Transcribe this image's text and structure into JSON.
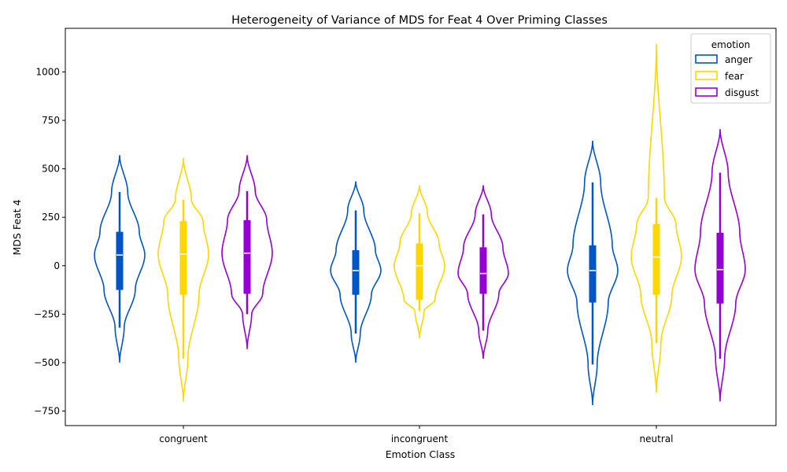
{
  "chart_data": {
    "type": "violin",
    "title": "Heterogeneity of Variance of MDS for Feat 4 Over Priming Classes",
    "xlabel": "Emotion Class",
    "ylabel": "MDS Feat 4",
    "categories": [
      "congruent",
      "incongruent",
      "neutral"
    ],
    "ylim": [
      -825,
      1225
    ],
    "yticks": [
      -750,
      -500,
      -250,
      0,
      250,
      500,
      750,
      1000
    ],
    "ytick_labels": [
      "−750",
      "−500",
      "−250",
      "0",
      "250",
      "500",
      "750",
      "1000"
    ],
    "legend": {
      "title": "emotion",
      "placement": "top-right",
      "entries": [
        "anger",
        "fear",
        "disgust"
      ]
    },
    "colors": {
      "anger": "#0055c8",
      "fear": "#ffd700",
      "disgust": "#9400d3"
    },
    "series": [
      {
        "name": "anger",
        "stats": [
          {
            "category": "congruent",
            "min": -500,
            "max": 570,
            "q1": -125,
            "median": 55,
            "q3": 175,
            "whisker_low": -320,
            "whisker_high": 380
          },
          {
            "category": "incongruent",
            "min": -500,
            "max": 435,
            "q1": -150,
            "median": -25,
            "q3": 80,
            "whisker_low": -350,
            "whisker_high": 285
          },
          {
            "category": "neutral",
            "min": -720,
            "max": 645,
            "q1": -190,
            "median": -25,
            "q3": 105,
            "whisker_low": -510,
            "whisker_high": 430
          }
        ]
      },
      {
        "name": "fear",
        "stats": [
          {
            "category": "congruent",
            "min": -700,
            "max": 555,
            "q1": -150,
            "median": 60,
            "q3": 230,
            "whisker_low": -480,
            "whisker_high": 340
          },
          {
            "category": "incongruent",
            "min": -375,
            "max": 415,
            "q1": -175,
            "median": 0,
            "q3": 115,
            "whisker_low": -235,
            "whisker_high": 270
          },
          {
            "category": "neutral",
            "min": -655,
            "max": 1145,
            "q1": -150,
            "median": 45,
            "q3": 215,
            "whisker_low": -400,
            "whisker_high": 350
          }
        ]
      },
      {
        "name": "disgust",
        "stats": [
          {
            "category": "congruent",
            "min": -430,
            "max": 570,
            "q1": -145,
            "median": 65,
            "q3": 235,
            "whisker_low": -250,
            "whisker_high": 385
          },
          {
            "category": "incongruent",
            "min": -480,
            "max": 415,
            "q1": -145,
            "median": -40,
            "q3": 95,
            "whisker_low": -335,
            "whisker_high": 265
          },
          {
            "category": "neutral",
            "min": -700,
            "max": 705,
            "q1": -195,
            "median": -20,
            "q3": 170,
            "whisker_low": -480,
            "whisker_high": 480
          }
        ]
      }
    ]
  }
}
